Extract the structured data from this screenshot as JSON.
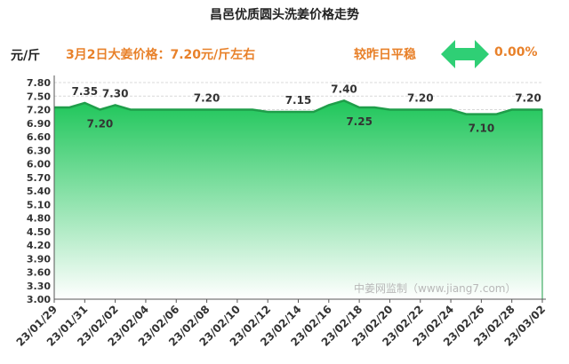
{
  "header": {
    "title": "昌邑优质圆头洗姜价格走势",
    "unit": "元/斤",
    "price_note": "3月2日大姜价格：7.20元/斤左右",
    "compare_label": "较昨日平稳",
    "compare_value": "0.00%"
  },
  "watermark": "中姜网监制（www.jiang7.com）",
  "colors": {
    "line": "#1f9e4a",
    "fill_top": "#1fc65a",
    "fill_bottom": "#ffffff",
    "accent": "#e8812a",
    "arrow": "#2fcf75"
  },
  "icons": {
    "compare": "double-arrow-icon"
  },
  "chart_data": {
    "type": "area",
    "title": "昌邑优质圆头洗姜价格走势",
    "ylabel": "元/斤",
    "xlabel": "",
    "ylim": [
      3.0,
      7.8
    ],
    "y_ticks": [
      "3.00",
      "3.30",
      "3.60",
      "3.90",
      "4.20",
      "4.50",
      "4.80",
      "5.10",
      "5.40",
      "5.70",
      "6.00",
      "6.30",
      "6.60",
      "6.90",
      "7.20",
      "7.50",
      "7.80"
    ],
    "x": [
      "23/01/29",
      "23/01/30",
      "23/01/31",
      "23/02/01",
      "23/02/02",
      "23/02/03",
      "23/02/04",
      "23/02/05",
      "23/02/06",
      "23/02/07",
      "23/02/08",
      "23/02/09",
      "23/02/10",
      "23/02/11",
      "23/02/12",
      "23/02/13",
      "23/02/14",
      "23/02/15",
      "23/02/16",
      "23/02/17",
      "23/02/18",
      "23/02/19",
      "23/02/20",
      "23/02/21",
      "23/02/22",
      "23/02/23",
      "23/02/24",
      "23/02/25",
      "23/02/26",
      "23/02/27",
      "23/02/28",
      "23/03/01",
      "23/03/02"
    ],
    "x_tick_labels": [
      "23/01/29",
      "23/01/31",
      "23/02/02",
      "23/02/04",
      "23/02/06",
      "23/02/08",
      "23/02/10",
      "23/02/12",
      "23/02/14",
      "23/02/16",
      "23/02/18",
      "23/02/20",
      "23/02/22",
      "23/02/24",
      "23/02/26",
      "23/02/28",
      "23/03/02"
    ],
    "values": [
      7.25,
      7.25,
      7.35,
      7.2,
      7.3,
      7.2,
      7.2,
      7.2,
      7.2,
      7.2,
      7.2,
      7.2,
      7.2,
      7.2,
      7.15,
      7.15,
      7.15,
      7.15,
      7.3,
      7.4,
      7.25,
      7.25,
      7.2,
      7.2,
      7.2,
      7.2,
      7.2,
      7.1,
      7.1,
      7.1,
      7.2,
      7.2,
      7.2
    ],
    "data_labels": [
      {
        "x": "23/01/31",
        "text": "7.35",
        "pos": "above"
      },
      {
        "x": "23/02/01",
        "text": "7.20",
        "pos": "below"
      },
      {
        "x": "23/02/02",
        "text": "7.30",
        "pos": "above"
      },
      {
        "x": "23/02/08",
        "text": "7.20",
        "pos": "above"
      },
      {
        "x": "23/02/14",
        "text": "7.15",
        "pos": "above"
      },
      {
        "x": "23/02/17",
        "text": "7.40",
        "pos": "above"
      },
      {
        "x": "23/02/18",
        "text": "7.25",
        "pos": "below"
      },
      {
        "x": "23/02/22",
        "text": "7.20",
        "pos": "above"
      },
      {
        "x": "23/02/26",
        "text": "7.10",
        "pos": "below"
      },
      {
        "x": "23/03/02",
        "text": "7.20",
        "pos": "above"
      }
    ],
    "grid": true,
    "legend": "none"
  }
}
